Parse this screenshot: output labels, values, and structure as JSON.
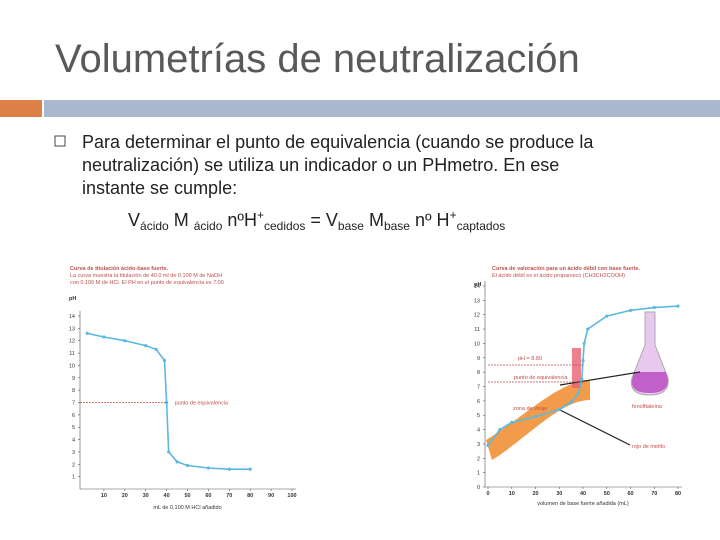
{
  "title": "Volumetrías de neutralización",
  "bullet": {
    "lines": [
      "Para determinar el punto de equivalencia (cuando se produce la",
      "neutralización) se utiliza un indicador o un PHmetro. En ese",
      "instante se cumple:"
    ]
  },
  "formula": [
    "V",
    "ácido",
    " M ",
    "ácido",
    " nºH",
    "+",
    "cedidos",
    " = V",
    "base",
    " M",
    "base",
    "  nº H",
    "+",
    "captados"
  ],
  "charts": [
    {
      "type": "line",
      "title": "Curva de titulación ácido-base fuerte.",
      "subtitle": [
        "La curva muestra la titulación de 40.0 ml de 0.100 M de NaOH",
        "con 0.100 M de HCl. El PH en el punto de equivalencia es 7.00"
      ],
      "ylabel": "pH",
      "xlabel": "mL de 0.100 M HCl añadido",
      "annotation": "punto de equivalencia",
      "color": "#5bb8e0",
      "x": [
        2,
        10,
        20,
        30,
        35,
        39,
        40,
        41,
        45,
        50,
        60,
        70,
        80
      ],
      "values": [
        12.6,
        12.3,
        12.0,
        11.6,
        11.3,
        10.4,
        7,
        3.0,
        2.2,
        1.9,
        1.7,
        1.6,
        1.6
      ],
      "xlim": [
        0,
        100
      ],
      "xticks": [
        10,
        20,
        30,
        40,
        50,
        60,
        70,
        80,
        90,
        100
      ],
      "ylim": [
        0,
        14
      ],
      "yticks": [
        1,
        2,
        3,
        4,
        5,
        6,
        7,
        8,
        9,
        10,
        11,
        12,
        13,
        14
      ]
    },
    {
      "type": "line",
      "title": "Curva de valoración para un ácido débil con base fuerte.",
      "subtitle": [
        "El ácido débil es el ácido propanoico (CH3CH2COOH)"
      ],
      "ylabel": "pH",
      "xlabel": "volumen de base fuerte añadida (mL)",
      "annotations": [
        "pH = 8.80",
        "punto de equivalencia",
        "zona de viraje",
        "fenolftaleína",
        "rojo de metilo"
      ],
      "color": "#5bb8e0",
      "x": [
        0,
        5,
        10,
        20,
        30,
        35,
        38,
        39.5,
        40,
        40.5,
        42,
        50,
        60,
        70,
        80
      ],
      "values": [
        2.9,
        4.0,
        4.5,
        4.9,
        5.4,
        5.9,
        6.5,
        7.5,
        8.8,
        10.0,
        11.0,
        11.9,
        12.3,
        12.5,
        12.6
      ],
      "xlim": [
        0,
        80
      ],
      "xticks": [
        0,
        10,
        20,
        30,
        40,
        50,
        60,
        70,
        80
      ],
      "ylim": [
        0,
        14
      ],
      "yticks": [
        0,
        1,
        2,
        3,
        4,
        5,
        6,
        7,
        8,
        9,
        10,
        11,
        12,
        13,
        14
      ]
    }
  ]
}
